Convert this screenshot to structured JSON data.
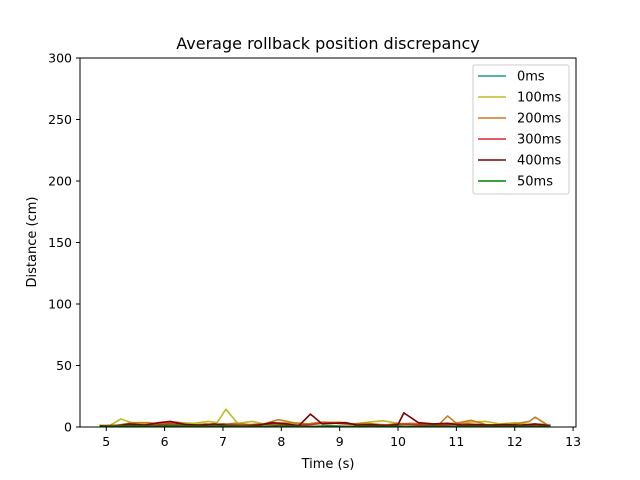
{
  "chart_data": {
    "type": "line",
    "title": "Average rollback position discrepancy",
    "xlabel": "Time (s)",
    "ylabel": "Distance (cm)",
    "xlim": [
      4.55,
      13.05
    ],
    "ylim": [
      0,
      300
    ],
    "xticks": [
      5,
      6,
      7,
      8,
      9,
      10,
      11,
      12,
      13
    ],
    "yticks": [
      0,
      50,
      100,
      150,
      200,
      250,
      300
    ],
    "grid": false,
    "legend_position": "upper right",
    "series": [
      {
        "name": "0ms",
        "color": "#1a9e80",
        "x": [
          4.9,
          5.2,
          5.5,
          5.8,
          6.1,
          6.4,
          6.7,
          7.0,
          7.3,
          7.6,
          7.9,
          8.2,
          8.5,
          8.8,
          9.1,
          9.4,
          9.7,
          10.0,
          10.3,
          10.6,
          10.9,
          11.2,
          11.5,
          11.8,
          12.1,
          12.4,
          12.6
        ],
        "y": [
          0.5,
          0.6,
          0.8,
          0.5,
          0.7,
          0.6,
          0.5,
          0.8,
          0.6,
          0.5,
          0.7,
          0.6,
          0.5,
          0.7,
          0.6,
          0.5,
          0.6,
          0.7,
          0.5,
          0.6,
          0.5,
          0.7,
          0.6,
          0.5,
          0.6,
          0.5,
          0.5
        ]
      },
      {
        "name": "100ms",
        "color": "#bcbd22",
        "x": [
          4.9,
          5.05,
          5.25,
          5.5,
          5.75,
          6.0,
          6.25,
          6.5,
          6.75,
          6.9,
          7.05,
          7.25,
          7.5,
          7.75,
          8.0,
          8.25,
          8.5,
          8.75,
          9.0,
          9.25,
          9.5,
          9.75,
          10.0,
          10.25,
          10.5,
          10.75,
          11.0,
          11.25,
          11.5,
          11.75,
          12.0,
          12.25,
          12.5
        ],
        "y": [
          1.5,
          1.0,
          6.5,
          2.5,
          3.0,
          2.0,
          3.5,
          3.0,
          4.5,
          3.5,
          14.5,
          3.0,
          4.5,
          2.0,
          3.5,
          3.0,
          2.5,
          3.5,
          4.0,
          2.5,
          4.0,
          5.0,
          3.0,
          2.5,
          3.0,
          2.0,
          3.5,
          4.0,
          4.5,
          2.5,
          3.5,
          2.0,
          2.5
        ]
      },
      {
        "name": "200ms",
        "color": "#c87a1d",
        "x": [
          4.9,
          5.2,
          5.45,
          5.7,
          5.95,
          6.2,
          6.45,
          6.7,
          6.95,
          7.2,
          7.45,
          7.7,
          7.95,
          8.2,
          8.45,
          8.7,
          8.95,
          9.2,
          9.45,
          9.7,
          9.95,
          10.2,
          10.45,
          10.7,
          10.85,
          11.0,
          11.25,
          11.5,
          11.75,
          12.0,
          12.25,
          12.35,
          12.55
        ],
        "y": [
          1.0,
          1.5,
          3.5,
          3.5,
          2.5,
          4.0,
          1.5,
          2.5,
          1.5,
          3.0,
          2.0,
          2.5,
          6.0,
          3.5,
          2.5,
          4.0,
          3.5,
          2.5,
          3.0,
          2.0,
          1.5,
          3.0,
          2.5,
          2.0,
          9.0,
          3.0,
          5.5,
          2.0,
          1.5,
          2.5,
          4.5,
          8.0,
          2.0
        ]
      },
      {
        "name": "300ms",
        "color": "#d62728",
        "x": [
          4.9,
          5.2,
          5.5,
          5.8,
          6.1,
          6.4,
          6.7,
          7.0,
          7.3,
          7.6,
          7.9,
          8.2,
          8.5,
          8.8,
          9.1,
          9.4,
          9.7,
          10.0,
          10.3,
          10.6,
          10.9,
          11.2,
          11.5,
          11.8,
          12.1,
          12.4,
          12.6
        ],
        "y": [
          1.0,
          1.5,
          2.0,
          1.5,
          2.5,
          2.0,
          1.5,
          2.5,
          1.5,
          2.0,
          2.5,
          1.5,
          2.0,
          3.5,
          2.5,
          2.0,
          1.5,
          2.5,
          2.0,
          1.5,
          2.0,
          2.5,
          1.5,
          2.0,
          1.5,
          2.0,
          1.5
        ]
      },
      {
        "name": "400ms",
        "color": "#7f0000",
        "x": [
          4.9,
          5.15,
          5.4,
          5.65,
          5.9,
          6.1,
          6.35,
          6.6,
          6.85,
          7.1,
          7.35,
          7.6,
          7.85,
          8.1,
          8.3,
          8.5,
          8.7,
          8.9,
          9.1,
          9.3,
          9.55,
          9.8,
          10.0,
          10.1,
          10.35,
          10.6,
          10.85,
          11.1,
          11.35,
          11.6,
          11.85,
          12.1,
          12.35,
          12.6
        ],
        "y": [
          1.0,
          0.5,
          2.5,
          1.5,
          3.5,
          4.5,
          2.0,
          1.5,
          2.5,
          1.0,
          0.5,
          1.5,
          3.5,
          2.5,
          1.0,
          10.5,
          2.5,
          3.0,
          3.5,
          1.5,
          2.0,
          1.0,
          2.0,
          11.5,
          3.5,
          2.5,
          3.0,
          1.5,
          2.0,
          1.5,
          2.0,
          1.5,
          2.5,
          1.0
        ]
      },
      {
        "name": "50ms",
        "color": "#008000",
        "x": [
          4.9,
          5.2,
          5.5,
          5.8,
          6.1,
          6.4,
          6.7,
          7.0,
          7.3,
          7.6,
          7.9,
          8.2,
          8.5,
          8.8,
          9.1,
          9.4,
          9.7,
          10.0,
          10.3,
          10.6,
          10.9,
          11.2,
          11.5,
          11.8,
          12.1,
          12.4,
          12.6
        ],
        "y": [
          0.5,
          0.8,
          1.0,
          0.6,
          1.2,
          0.8,
          0.6,
          1.0,
          0.8,
          0.5,
          1.0,
          0.7,
          0.5,
          0.9,
          0.6,
          0.8,
          0.5,
          0.7,
          0.6,
          0.8,
          0.5,
          0.7,
          0.6,
          0.5,
          0.7,
          0.6,
          0.5
        ]
      }
    ]
  }
}
